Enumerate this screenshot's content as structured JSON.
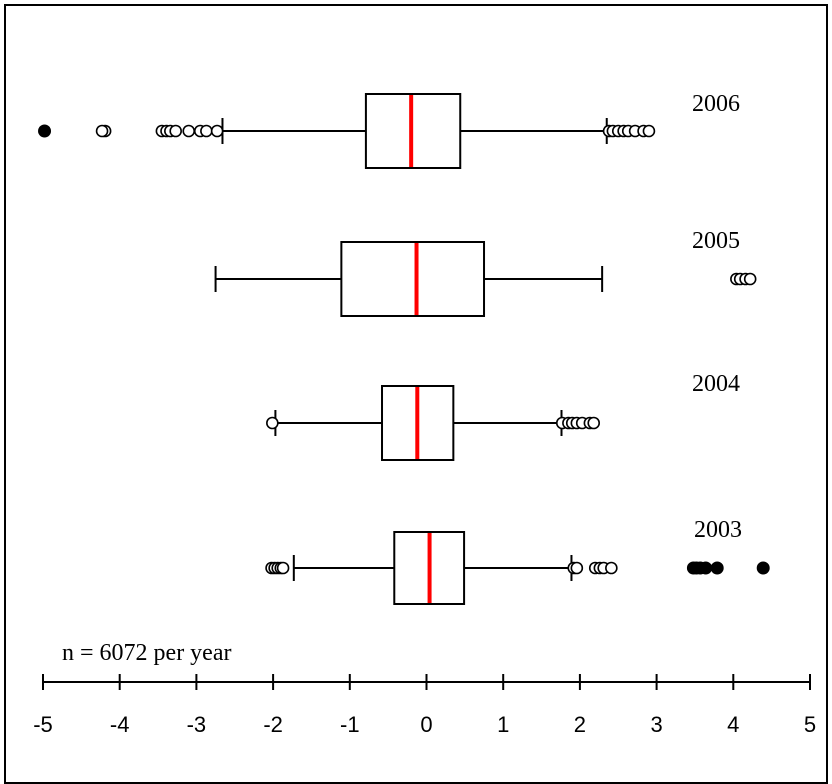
{
  "chart_data": {
    "type": "boxplot",
    "orientation": "horizontal",
    "annotation": "n = 6072 per year",
    "xlim": [
      -5,
      5
    ],
    "x_ticks": [
      "-5",
      "-4",
      "-3",
      "-2",
      "-1",
      "0",
      "1",
      "2",
      "3",
      "4",
      "5"
    ],
    "median_color": "#ff0000",
    "series": [
      {
        "name": "2006",
        "q1": -0.79,
        "median": -0.2,
        "q3": 0.44,
        "whisker_low": -2.66,
        "whisker_high": 2.35,
        "mild_outliers": [
          -4.19,
          -4.23,
          -3.45,
          -3.39,
          -3.34,
          -3.27,
          -3.1,
          -2.95,
          -2.87,
          -2.73,
          2.38,
          2.43,
          2.5,
          2.57,
          2.63,
          2.72,
          2.83,
          2.9
        ],
        "extreme_outliers": [
          -4.98
        ]
      },
      {
        "name": "2005",
        "q1": -1.11,
        "median": -0.13,
        "q3": 0.75,
        "whisker_low": -2.75,
        "whisker_high": 2.29,
        "mild_outliers": [
          4.04,
          4.09,
          4.16,
          4.22
        ],
        "extreme_outliers": []
      },
      {
        "name": "2004",
        "q1": -0.58,
        "median": -0.12,
        "q3": 0.35,
        "whisker_low": -1.97,
        "whisker_high": 1.76,
        "mild_outliers": [
          -2.01,
          1.77,
          1.85,
          1.9,
          1.96,
          2.03,
          2.13,
          2.18
        ],
        "extreme_outliers": []
      },
      {
        "name": "2003",
        "q1": -0.42,
        "median": 0.04,
        "q3": 0.49,
        "whisker_low": -1.73,
        "whisker_high": 1.89,
        "mild_outliers": [
          -2.02,
          -1.98,
          -1.94,
          -1.9,
          -1.87,
          1.92,
          1.96,
          2.2,
          2.26,
          2.31,
          2.41
        ],
        "extreme_outliers": [
          3.48,
          3.52,
          3.57,
          3.64,
          3.79,
          4.39
        ]
      }
    ]
  }
}
